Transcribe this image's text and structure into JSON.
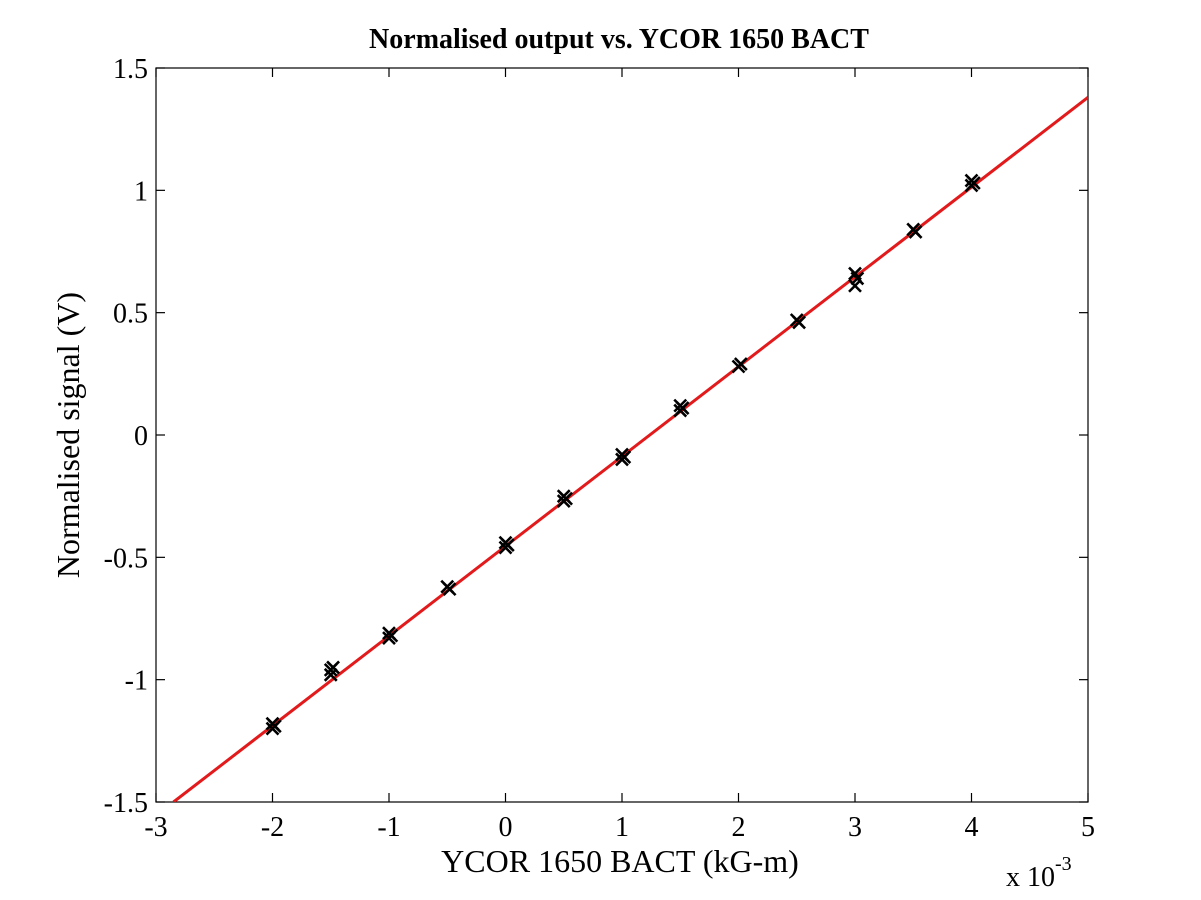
{
  "chart_data": {
    "type": "scatter",
    "title": "Normalised output vs. YCOR 1650 BACT",
    "xlabel": "YCOR 1650 BACT (kG-m)",
    "ylabel": "Normalised signal (V)",
    "x_multiplier_base": "x 10",
    "x_multiplier_exp": "-3",
    "xlim": [
      -3,
      5
    ],
    "ylim": [
      -1.5,
      1.5
    ],
    "xticks": [
      -3,
      -2,
      -1,
      0,
      1,
      2,
      3,
      4,
      5
    ],
    "xtick_labels": [
      "-3",
      "-2",
      "-1",
      "0",
      "1",
      "2",
      "3",
      "4",
      "5"
    ],
    "yticks": [
      -1.5,
      -1,
      -0.5,
      0,
      0.5,
      1,
      1.5
    ],
    "ytick_labels": [
      "-1.5",
      "-1",
      "-0.5",
      "0",
      "0.5",
      "1",
      "1.5"
    ],
    "grid": false,
    "marker_color": "#000000",
    "fit_color": "#e31a1c",
    "points": [
      {
        "x": -2.0,
        "y": -1.18
      },
      {
        "x": -2.0,
        "y": -1.2
      },
      {
        "x": -1.98,
        "y": -1.19
      },
      {
        "x": -1.5,
        "y": -0.96
      },
      {
        "x": -1.5,
        "y": -0.98
      },
      {
        "x": -1.48,
        "y": -0.95
      },
      {
        "x": -1.0,
        "y": -0.81
      },
      {
        "x": -1.0,
        "y": -0.83
      },
      {
        "x": -0.98,
        "y": -0.82
      },
      {
        "x": -0.5,
        "y": -0.62
      },
      {
        "x": -0.48,
        "y": -0.63
      },
      {
        "x": 0.0,
        "y": -0.44
      },
      {
        "x": 0.02,
        "y": -0.45
      },
      {
        "x": 0.0,
        "y": -0.46
      },
      {
        "x": 0.5,
        "y": -0.25
      },
      {
        "x": 0.5,
        "y": -0.27
      },
      {
        "x": 0.52,
        "y": -0.26
      },
      {
        "x": 1.0,
        "y": -0.08
      },
      {
        "x": 1.0,
        "y": -0.1
      },
      {
        "x": 1.02,
        "y": -0.09
      },
      {
        "x": 1.5,
        "y": 0.12
      },
      {
        "x": 1.5,
        "y": 0.1
      },
      {
        "x": 1.52,
        "y": 0.11
      },
      {
        "x": 2.0,
        "y": 0.28
      },
      {
        "x": 2.02,
        "y": 0.29
      },
      {
        "x": 2.5,
        "y": 0.47
      },
      {
        "x": 2.52,
        "y": 0.46
      },
      {
        "x": 3.0,
        "y": 0.66
      },
      {
        "x": 3.0,
        "y": 0.61
      },
      {
        "x": 3.02,
        "y": 0.64
      },
      {
        "x": 3.5,
        "y": 0.84
      },
      {
        "x": 3.52,
        "y": 0.83
      },
      {
        "x": 4.0,
        "y": 1.04
      },
      {
        "x": 4.0,
        "y": 1.02
      },
      {
        "x": 4.02,
        "y": 1.03
      }
    ],
    "fit_line": {
      "x": [
        -2.85,
        5.0
      ],
      "y": [
        -1.5,
        1.38
      ]
    }
  }
}
